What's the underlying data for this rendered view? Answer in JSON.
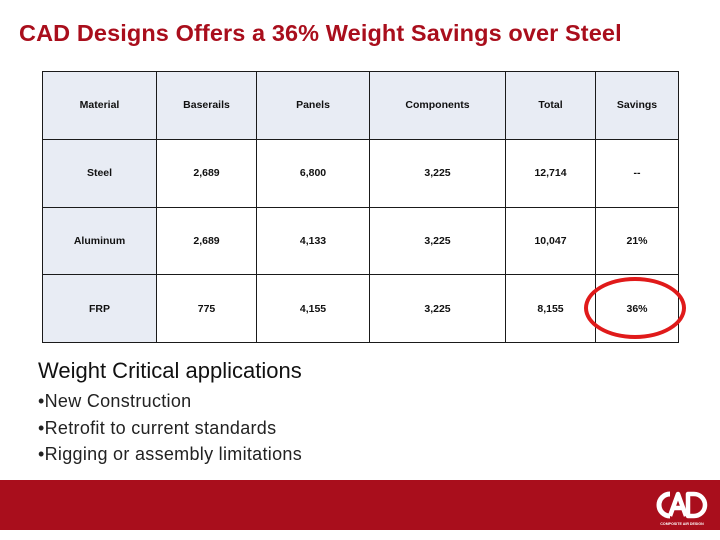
{
  "title": "CAD Designs Offers a 36% Weight Savings over Steel",
  "table": {
    "headers": [
      "Material",
      "Baserails",
      "Panels",
      "Components",
      "Total",
      "Savings"
    ],
    "rows": [
      [
        "Steel",
        "2,689",
        "6,800",
        "3,225",
        "12,714",
        "--"
      ],
      [
        "Aluminum",
        "2,689",
        "4,133",
        "3,225",
        "10,047",
        "21%"
      ],
      [
        "FRP",
        "775",
        "4,155",
        "3,225",
        "8,155",
        "36%"
      ]
    ]
  },
  "body": {
    "heading": "Weight Critical applications",
    "bullets": [
      "New Construction",
      "Retrofit to current standards",
      "Rigging or assembly limitations"
    ]
  },
  "colors": {
    "brand_red": "#a90e1c",
    "highlight_ring": "#e01a1a",
    "cell_fill": "#e8ecf4"
  },
  "logo": {
    "icon": "cad-logo-icon",
    "text": "COMPOSITE AIR DESIGN"
  }
}
